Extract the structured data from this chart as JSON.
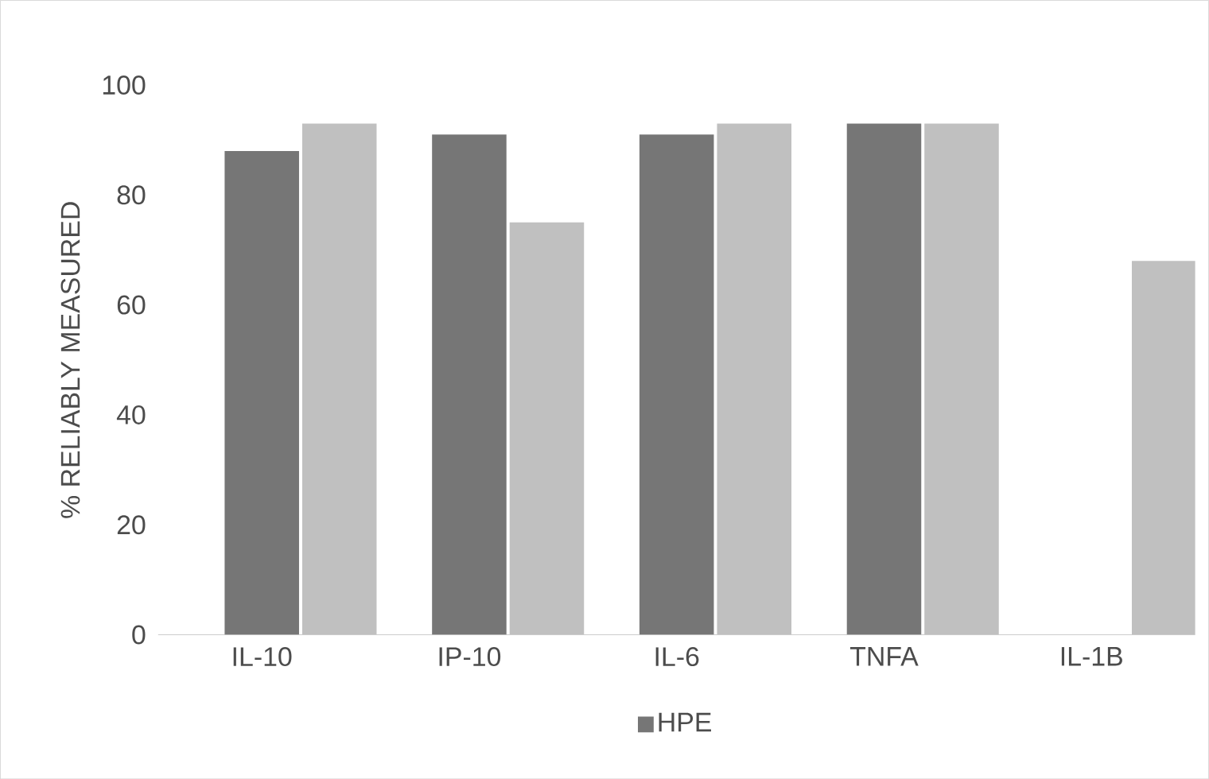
{
  "chart_data": {
    "type": "bar",
    "ylabel": "% RELIABLY MEASURED",
    "categories": [
      "IL-10",
      "IP-10",
      "IL-6",
      "TNFA",
      "IL-1B"
    ],
    "series": [
      {
        "name": "HPE",
        "color": "#767676",
        "values": [
          88,
          91,
          91,
          93,
          0
        ]
      },
      {
        "color": "#c0c0c0",
        "values": [
          93,
          75,
          93,
          93,
          68
        ]
      }
    ],
    "ylim": [
      0,
      100
    ],
    "yticks": [
      0,
      20,
      40,
      60,
      80,
      100
    ],
    "legend": "bottom"
  }
}
